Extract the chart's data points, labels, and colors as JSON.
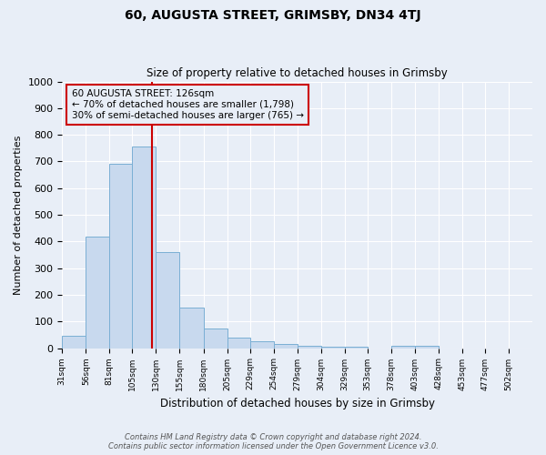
{
  "title": "60, AUGUSTA STREET, GRIMSBY, DN34 4TJ",
  "subtitle": "Size of property relative to detached houses in Grimsby",
  "xlabel": "Distribution of detached houses by size in Grimsby",
  "ylabel": "Number of detached properties",
  "bar_edges": [
    31,
    56,
    81,
    105,
    130,
    155,
    180,
    205,
    229,
    254,
    279,
    304,
    329,
    353,
    378,
    403,
    428,
    453,
    477,
    502,
    527
  ],
  "bar_heights": [
    48,
    420,
    690,
    755,
    360,
    152,
    72,
    38,
    27,
    15,
    10,
    7,
    5,
    0,
    8,
    8,
    0,
    0,
    0,
    0
  ],
  "bar_color": "#c8d9ee",
  "bar_edge_color": "#7aafd4",
  "property_size": 126,
  "vline_color": "#cc0000",
  "annotation_box_edge_color": "#cc0000",
  "annotation_text_line1": "60 AUGUSTA STREET: 126sqm",
  "annotation_text_line2": "← 70% of detached houses are smaller (1,798)",
  "annotation_text_line3": "30% of semi-detached houses are larger (765) →",
  "ylim": [
    0,
    1000
  ],
  "yticks": [
    0,
    100,
    200,
    300,
    400,
    500,
    600,
    700,
    800,
    900,
    1000
  ],
  "footnote1": "Contains HM Land Registry data © Crown copyright and database right 2024.",
  "footnote2": "Contains public sector information licensed under the Open Government Licence v3.0.",
  "bg_color": "#e8eef7",
  "plot_bg_color": "#e8eef7"
}
